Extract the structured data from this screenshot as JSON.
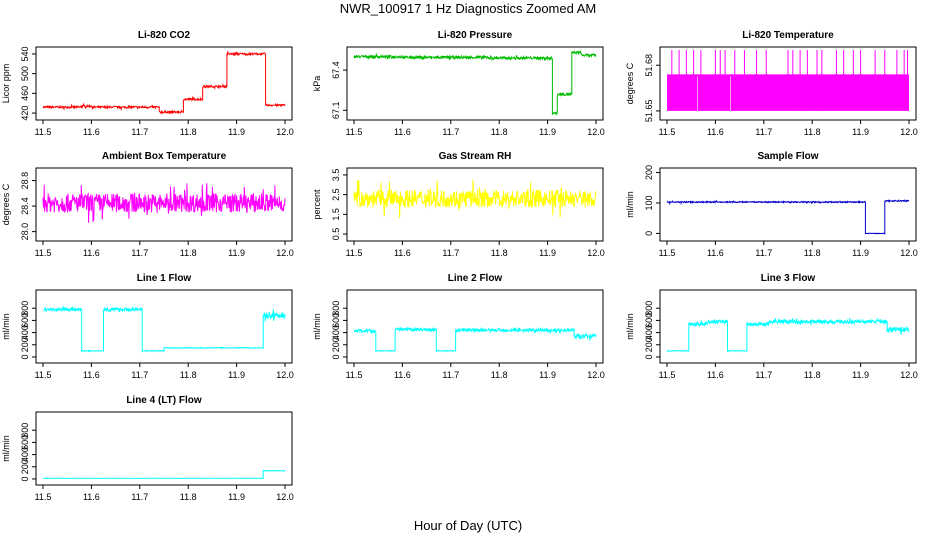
{
  "figure": {
    "title": "NWR_100917  1 Hz Diagnostics Zoomed AM",
    "xlabel": "Hour of Day (UTC)"
  },
  "chart_data": [
    {
      "type": "line",
      "title": "Li-820 CO2",
      "ylabel": "Licor ppm",
      "color": "#ff0000",
      "xlim": [
        11.5,
        12.0
      ],
      "ylim": [
        412,
        548
      ],
      "xticks": [
        "11.5",
        "11.6",
        "11.7",
        "11.8",
        "11.9",
        "12.0"
      ],
      "yticks": [
        {
          "v": 420,
          "label": "420"
        },
        {
          "v": 460,
          "label": "460"
        },
        {
          "v": 500,
          "label": "500"
        },
        {
          "v": 540,
          "label": "540"
        }
      ],
      "segments": [
        [
          11.5,
          11.58,
          432,
          2
        ],
        [
          11.58,
          11.6,
          434,
          2
        ],
        [
          11.6,
          11.74,
          432,
          2
        ],
        [
          11.74,
          11.79,
          422,
          2
        ],
        [
          11.79,
          11.83,
          448,
          2
        ],
        [
          11.83,
          11.88,
          474,
          2
        ],
        [
          11.88,
          11.96,
          540,
          2
        ],
        [
          11.96,
          12.0,
          436,
          2
        ]
      ]
    },
    {
      "type": "line",
      "title": "Li-820 Pressure",
      "ylabel": "kPa",
      "color": "#00bb00",
      "xlim": [
        11.5,
        12.0
      ],
      "ylim": [
        67.05,
        67.55
      ],
      "xticks": [
        "11.5",
        "11.6",
        "11.7",
        "11.8",
        "11.9",
        "12.0"
      ],
      "yticks": [
        {
          "v": 67.1,
          "label": "67.1"
        },
        {
          "v": 67.4,
          "label": "67.4"
        }
      ],
      "segments": [
        [
          11.5,
          11.6,
          67.5,
          0.01
        ],
        [
          11.6,
          11.78,
          67.495,
          0.01
        ],
        [
          11.78,
          11.91,
          67.49,
          0.01
        ],
        [
          11.91,
          11.92,
          67.08,
          0.01
        ],
        [
          11.92,
          11.95,
          67.22,
          0.01
        ],
        [
          11.95,
          11.97,
          67.53,
          0.01
        ],
        [
          11.97,
          12.0,
          67.51,
          0.01
        ]
      ]
    },
    {
      "type": "line",
      "title": "Li-820 Temperature",
      "ylabel": "degrees C",
      "color": "#ff00ff",
      "xlim": [
        11.5,
        12.0
      ],
      "ylim": [
        51.646,
        51.69
      ],
      "xticks": [
        "11.5",
        "11.6",
        "11.7",
        "11.8",
        "11.9",
        "12.0"
      ],
      "yticks": [
        {
          "v": 51.65,
          "label": "51.65"
        },
        {
          "v": 51.68,
          "label": "51.68"
        }
      ],
      "base": 51.65,
      "band_top": 51.674,
      "spike_top": 51.69,
      "spikes": [
        11.51,
        11.525,
        11.54,
        11.555,
        11.57,
        11.6,
        11.61,
        11.62,
        11.64,
        11.66,
        11.685,
        11.705,
        11.75,
        11.76,
        11.775,
        11.79,
        11.81,
        11.82,
        11.85,
        11.865,
        11.885,
        11.9,
        11.93,
        11.95,
        11.975,
        11.99,
        11.997
      ]
    },
    {
      "type": "line",
      "title": "Ambient Box Temperature",
      "ylabel": "degrees C",
      "color": "#ff00ff",
      "xlim": [
        11.5,
        12.0
      ],
      "ylim": [
        27.9,
        28.95
      ],
      "xticks": [
        "11.5",
        "11.6",
        "11.7",
        "11.8",
        "11.9",
        "12.0"
      ],
      "yticks": [
        {
          "v": 28.0,
          "label": "28.0"
        },
        {
          "v": 28.4,
          "label": "28.4"
        },
        {
          "v": 28.8,
          "label": "28.8"
        }
      ],
      "segments": [
        [
          11.5,
          12.0,
          28.45,
          0.15
        ]
      ]
    },
    {
      "type": "line",
      "title": "Gas Stream RH",
      "ylabel": "percent",
      "color": "#ffff00",
      "xlim": [
        11.5,
        12.0
      ],
      "ylim": [
        0.3,
        3.7
      ],
      "xticks": [
        "11.5",
        "11.6",
        "11.7",
        "11.8",
        "11.9",
        "12.0"
      ],
      "yticks": [
        {
          "v": 0.5,
          "label": "0.5"
        },
        {
          "v": 1.5,
          "label": "1.5"
        },
        {
          "v": 2.5,
          "label": "2.5"
        },
        {
          "v": 3.5,
          "label": "3.5"
        }
      ],
      "segments": [
        [
          11.5,
          12.0,
          2.3,
          0.45
        ]
      ]
    },
    {
      "type": "line",
      "title": "Sample Flow",
      "ylabel": "ml/min",
      "color": "#0000cc",
      "xlim": [
        11.5,
        12.0
      ],
      "ylim": [
        -15,
        205
      ],
      "xticks": [
        "11.5",
        "11.6",
        "11.7",
        "11.8",
        "11.9",
        "12.0"
      ],
      "yticks": [
        {
          "v": 0,
          "label": "0"
        },
        {
          "v": 100,
          "label": "100"
        },
        {
          "v": 200,
          "label": "200"
        }
      ],
      "segments": [
        [
          11.5,
          11.91,
          103,
          2
        ],
        [
          11.91,
          11.95,
          0,
          1
        ],
        [
          11.95,
          12.0,
          107,
          2
        ]
      ]
    },
    {
      "type": "line",
      "title": "Line 1 Flow",
      "ylabel": "ml/min",
      "color": "#00ffff",
      "xlim": [
        11.5,
        12.0
      ],
      "ylim": [
        -50,
        1050
      ],
      "xticks": [
        "11.5",
        "11.6",
        "11.7",
        "11.8",
        "11.9",
        "12.0"
      ],
      "yticks": [
        {
          "v": 0,
          "label": "0"
        },
        {
          "v": 200,
          "label": "200"
        },
        {
          "v": 400,
          "label": "400"
        },
        {
          "v": 600,
          "label": "600"
        },
        {
          "v": 800,
          "label": "800"
        }
      ],
      "segments": [
        [
          11.5,
          11.58,
          780,
          25
        ],
        [
          11.58,
          11.625,
          100,
          5
        ],
        [
          11.625,
          11.705,
          780,
          25
        ],
        [
          11.705,
          11.75,
          100,
          5
        ],
        [
          11.75,
          11.955,
          150,
          5
        ],
        [
          11.955,
          12.0,
          680,
          50
        ]
      ]
    },
    {
      "type": "line",
      "title": "Line 2 Flow",
      "ylabel": "ml/min",
      "color": "#00ffff",
      "xlim": [
        11.5,
        12.0
      ],
      "ylim": [
        -50,
        1050
      ],
      "xticks": [
        "11.5",
        "11.6",
        "11.7",
        "11.8",
        "11.9",
        "12.0"
      ],
      "yticks": [
        {
          "v": 0,
          "label": "0"
        },
        {
          "v": 200,
          "label": "200"
        },
        {
          "v": 400,
          "label": "400"
        },
        {
          "v": 600,
          "label": "600"
        },
        {
          "v": 800,
          "label": "800"
        }
      ],
      "segments": [
        [
          11.5,
          11.545,
          430,
          25
        ],
        [
          11.545,
          11.585,
          100,
          5
        ],
        [
          11.585,
          11.67,
          450,
          25
        ],
        [
          11.67,
          11.71,
          100,
          5
        ],
        [
          11.71,
          11.955,
          440,
          25
        ],
        [
          11.955,
          12.0,
          340,
          40
        ]
      ]
    },
    {
      "type": "line",
      "title": "Line 3 Flow",
      "ylabel": "ml/min",
      "color": "#00ffff",
      "xlim": [
        11.5,
        12.0
      ],
      "ylim": [
        -50,
        1050
      ],
      "xticks": [
        "11.5",
        "11.6",
        "11.7",
        "11.8",
        "11.9",
        "12.0"
      ],
      "yticks": [
        {
          "v": 0,
          "label": "0"
        },
        {
          "v": 200,
          "label": "200"
        },
        {
          "v": 400,
          "label": "400"
        },
        {
          "v": 600,
          "label": "600"
        },
        {
          "v": 800,
          "label": "800"
        }
      ],
      "segments": [
        [
          11.5,
          11.545,
          100,
          5
        ],
        [
          11.545,
          11.585,
          540,
          30
        ],
        [
          11.585,
          11.625,
          580,
          30
        ],
        [
          11.625,
          11.665,
          100,
          5
        ],
        [
          11.665,
          11.71,
          540,
          30
        ],
        [
          11.71,
          11.955,
          580,
          30
        ],
        [
          11.955,
          12.0,
          450,
          40
        ]
      ]
    },
    {
      "type": "line",
      "title": "Line 4 (LT) Flow",
      "ylabel": "ml/min",
      "color": "#00ffff",
      "xlim": [
        11.5,
        12.0
      ],
      "ylim": [
        -50,
        1050
      ],
      "xticks": [
        "11.5",
        "11.6",
        "11.7",
        "11.8",
        "11.9",
        "12.0"
      ],
      "yticks": [
        {
          "v": 0,
          "label": "0"
        },
        {
          "v": 200,
          "label": "200"
        },
        {
          "v": 400,
          "label": "400"
        },
        {
          "v": 600,
          "label": "600"
        },
        {
          "v": 800,
          "label": "800"
        }
      ],
      "segments": [
        [
          11.5,
          11.955,
          10,
          2
        ],
        [
          11.955,
          12.0,
          135,
          5
        ]
      ]
    }
  ]
}
